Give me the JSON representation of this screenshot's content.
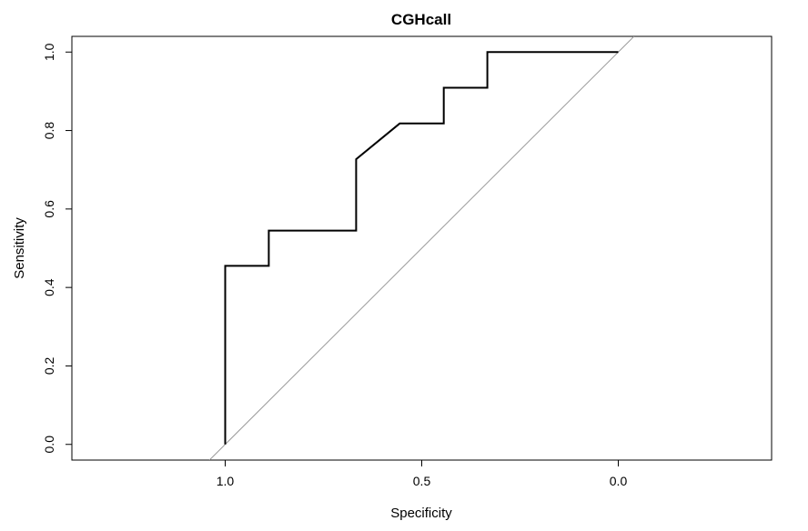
{
  "chart_data": {
    "type": "line",
    "title": "CGHcall",
    "xlabel": "Specificity",
    "ylabel": "Sensitivity",
    "x_reversed": true,
    "xlim": [
      1.39,
      -0.39
    ],
    "ylim": [
      -0.04,
      1.04
    ],
    "x_ticks": [
      {
        "value": 1.0,
        "label": "1.0"
      },
      {
        "value": 0.5,
        "label": "0.5"
      },
      {
        "value": 0.0,
        "label": "0.0"
      }
    ],
    "y_ticks": [
      {
        "value": 0.0,
        "label": "0.0"
      },
      {
        "value": 0.2,
        "label": "0.2"
      },
      {
        "value": 0.4,
        "label": "0.4"
      },
      {
        "value": 0.6,
        "label": "0.6"
      },
      {
        "value": 0.8,
        "label": "0.8"
      },
      {
        "value": 1.0,
        "label": "1.0"
      }
    ],
    "grid": false,
    "legend": "none",
    "series": [
      {
        "x": [
          1.0,
          1.0,
          0.889,
          0.889,
          0.667,
          0.667,
          0.556,
          0.444,
          0.444,
          0.333,
          0.333,
          0.0
        ],
        "y": [
          0.0,
          0.455,
          0.455,
          0.545,
          0.545,
          0.727,
          0.818,
          0.818,
          0.909,
          0.909,
          1.0,
          1.0
        ],
        "color": "#000000"
      }
    ],
    "reference_line": {
      "type": "diagonal",
      "color": "#9a9a9a"
    }
  }
}
